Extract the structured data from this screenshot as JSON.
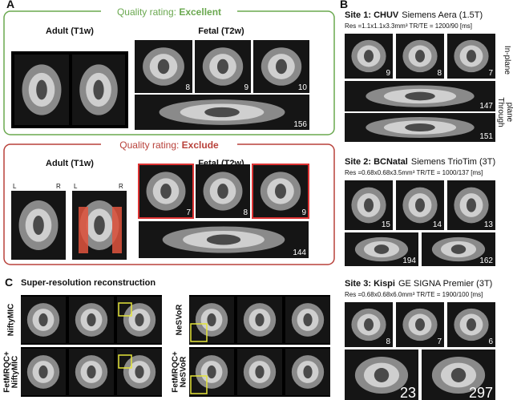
{
  "panel_a": {
    "label": "A",
    "excellent": {
      "title": "Quality rating: ",
      "rating": "Excellent",
      "adult": "Adult (T1w)",
      "fetal": "Fetal (T2w)",
      "slices": [
        8,
        9,
        10,
        156
      ]
    },
    "exclude": {
      "title": "Quality rating: ",
      "rating": "Exclude",
      "adult": "Adult (T1w)",
      "fetal": "Fetal (T2w)",
      "orientation": [
        "L",
        "R",
        "L",
        "R"
      ],
      "slices": [
        7,
        8,
        9,
        144
      ]
    }
  },
  "panel_b": {
    "label": "B",
    "in_plane": "In-plane",
    "through_plane": [
      "Through",
      "plane"
    ],
    "sites": [
      {
        "site": "Site 1: CHUV",
        "scanner": "Siemens Aera (1.5T)",
        "resolution": "Res =1.1x1.1x3.3mm³  TR/TE = 1200/90 [ms]",
        "slices": [
          9,
          8,
          7,
          147,
          151
        ]
      },
      {
        "site": "Site 2: BCNatal",
        "scanner": "Siemens TrioTim (3T)",
        "resolution": "Res =0.68x0.68x3.5mm³  TR/TE = 1000/137 [ms]",
        "slices": [
          15,
          14,
          13,
          194,
          162
        ]
      },
      {
        "site": "Site 3: Kispi",
        "scanner": "GE SIGNA Premier (3T)",
        "resolution": "Res =0.68x0.68x6.0mm³  TR/TE = 1900/100 [ms]",
        "slices": [
          8,
          7,
          6,
          23,
          297
        ]
      }
    ]
  },
  "panel_c": {
    "label": "C",
    "title": "Super-resolution reconstruction",
    "rows": [
      [
        "NiftyMIC"
      ],
      [
        "FetMRQC+",
        "NiftyMIC"
      ],
      [
        "NeSVoR"
      ],
      [
        "FetMRQC+",
        "NeSVoR"
      ]
    ]
  }
}
